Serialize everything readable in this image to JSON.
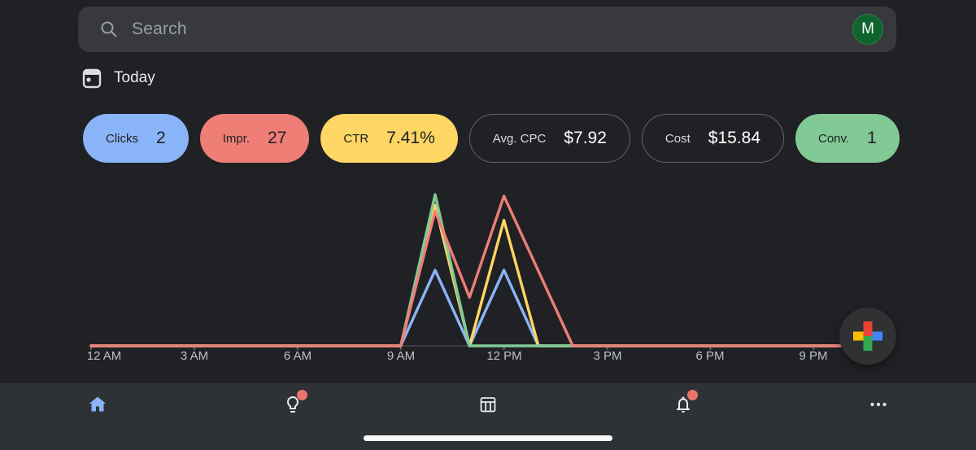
{
  "search": {
    "placeholder": "Search",
    "avatar_initial": "M"
  },
  "date_range": {
    "label": "Today"
  },
  "metrics": [
    {
      "label": "Clicks",
      "value": "2",
      "variant": "blue"
    },
    {
      "label": "Impr.",
      "value": "27",
      "variant": "red"
    },
    {
      "label": "CTR",
      "value": "7.41%",
      "variant": "yellow"
    },
    {
      "label": "Avg. CPC",
      "value": "$7.92",
      "variant": "outline"
    },
    {
      "label": "Cost",
      "value": "$15.84",
      "variant": "outline"
    },
    {
      "label": "Conv.",
      "value": "1",
      "variant": "green"
    }
  ],
  "colors": {
    "background": "#202124",
    "search_bar": "#37393c",
    "nav_bar": "#2f3235",
    "accent_blue": "#8ab4f8",
    "accent_red": "#ee7e76",
    "accent_yellow": "#fdd663",
    "accent_green": "#81c995",
    "badge_red": "#ea746c",
    "avatar_green": "#0d652d",
    "axis_line": "#3c4043",
    "axis_text": "#bdc1c6"
  },
  "chart_data": {
    "type": "line",
    "x_unit": "hour of day",
    "x_tick_labels": [
      "12 AM",
      "3 AM",
      "6 AM",
      "9 AM",
      "12 PM",
      "3 PM",
      "6 PM",
      "9 PM"
    ],
    "x_tick_hours": [
      0,
      3,
      6,
      9,
      12,
      15,
      18,
      21
    ],
    "ylim": [
      0,
      1
    ],
    "grid": false,
    "legend": "none",
    "series": [
      {
        "name": "Clicks",
        "color": "#8ab4f8",
        "values": [
          0,
          0,
          0,
          0,
          0,
          0,
          0,
          0,
          0,
          0,
          0.5,
          0,
          0.5,
          0,
          0,
          0,
          0,
          0,
          0,
          0,
          0,
          0,
          0,
          0
        ]
      },
      {
        "name": "CTR",
        "color": "#fdd663",
        "values": [
          0,
          0,
          0,
          0,
          0,
          0,
          0,
          0,
          0,
          0,
          0.93,
          0,
          0.83,
          0,
          0,
          0,
          0,
          0,
          0,
          0,
          0,
          0,
          0,
          0
        ]
      },
      {
        "name": "Conversions",
        "color": "#81c995",
        "values": [
          0,
          0,
          0,
          0,
          0,
          0,
          0,
          0,
          0,
          0,
          1.0,
          0,
          0,
          0,
          0,
          0,
          0,
          0,
          0,
          0,
          0,
          0,
          0,
          0
        ]
      },
      {
        "name": "Impressions",
        "color": "#ee7e76",
        "values": [
          0,
          0,
          0,
          0,
          0,
          0,
          0,
          0,
          0,
          0,
          0.89,
          0.32,
          0.99,
          0.495,
          0,
          0,
          0,
          0,
          0,
          0,
          0,
          0,
          0,
          0
        ]
      }
    ]
  },
  "fab": {
    "icon": "google-plus"
  },
  "nav": {
    "items": [
      {
        "icon": "home",
        "active": true,
        "badge": false
      },
      {
        "icon": "insights-bulb",
        "active": false,
        "badge": true
      },
      {
        "icon": "tables",
        "active": false,
        "badge": false
      },
      {
        "icon": "notifications",
        "active": false,
        "badge": true
      },
      {
        "icon": "more",
        "active": false,
        "badge": false
      }
    ]
  }
}
